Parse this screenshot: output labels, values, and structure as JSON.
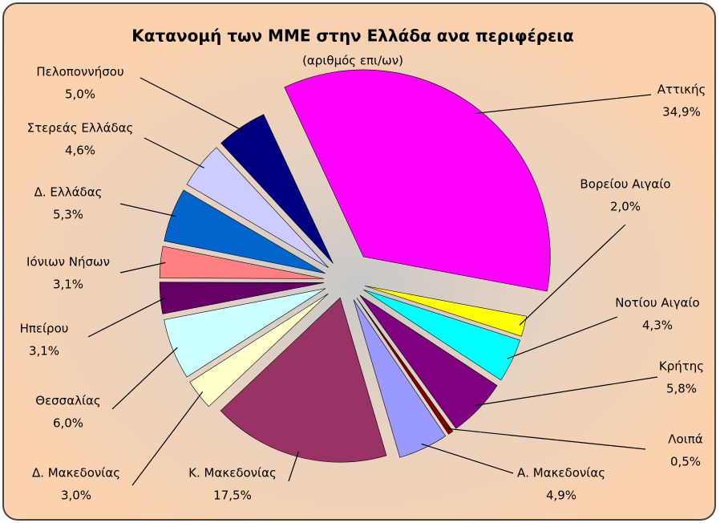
{
  "chart_data": {
    "type": "pie",
    "title": "Κατανομή των ΜΜΕ στην Ελλάδα ανα περιφέρεια",
    "subtitle": "(αριθμός επι/ων)",
    "categories": [
      "Αττικής",
      "Βορείου Αιγαίο",
      "Νοτίου Αιγαίο",
      "Κρήτης",
      "Λοιπά",
      "Α. Μακεδονίας",
      "Κ. Μακεδονίας",
      "Δ. Μακεδονίας",
      "Θεσσαλίας",
      "Ηπείρου",
      "Ιόνιων Νήσων",
      "Δ. Ελλάδας",
      "Στερεάς Ελλάδας",
      "Πελοποννήσου"
    ],
    "values": [
      34.9,
      2.0,
      4.3,
      5.8,
      0.5,
      4.9,
      17.5,
      3.0,
      6.0,
      3.1,
      3.1,
      5.3,
      4.6,
      5.0
    ],
    "value_labels": [
      "34,9%",
      "2,0%",
      "4,3%",
      "5,8%",
      "0,5%",
      "4,9%",
      "17,5%",
      "3,0%",
      "6,0%",
      "3,1%",
      "3,1%",
      "5,3%",
      "4,6%",
      "5,0%"
    ],
    "colors": [
      "#ff00ff",
      "#ffff00",
      "#00ffff",
      "#800080",
      "#800000",
      "#9999ff",
      "#993366",
      "#ffffcc",
      "#ccffff",
      "#660066",
      "#ff8080",
      "#0066cc",
      "#ccccff",
      "#000080"
    ]
  }
}
